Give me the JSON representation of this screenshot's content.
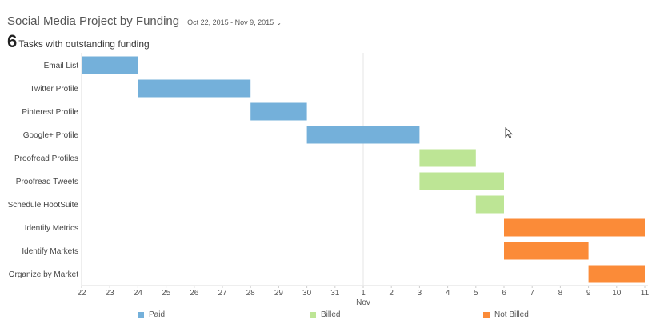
{
  "header": {
    "title": "Social Media Project by Funding",
    "date_range": "Oct 22, 2015 - Nov 9, 2015",
    "date_range_icon": "chevron-down-icon"
  },
  "summary": {
    "count": "6",
    "label": "Tasks with outstanding funding"
  },
  "colors": {
    "Paid": "#74b0da",
    "Billed": "#bde595",
    "Not Billed": "#fb8b38"
  },
  "chart_data": {
    "type": "gantt",
    "title": "",
    "x_ticks": [
      "22",
      "23",
      "24",
      "25",
      "26",
      "27",
      "28",
      "29",
      "30",
      "31",
      "1",
      "2",
      "3",
      "4",
      "5",
      "6",
      "7",
      "8",
      "9",
      "10",
      "11"
    ],
    "x_month_marker": {
      "tick": "1",
      "label": "Nov"
    },
    "xlim": [
      "2015-10-22",
      "2015-11-11"
    ],
    "tasks": [
      {
        "name": "Email List",
        "start": "2015-10-22",
        "end": "2015-10-24",
        "status": "Paid"
      },
      {
        "name": "Twitter Profile",
        "start": "2015-10-24",
        "end": "2015-10-28",
        "status": "Paid"
      },
      {
        "name": "Pinterest Profile",
        "start": "2015-10-28",
        "end": "2015-10-30",
        "status": "Paid"
      },
      {
        "name": "Google+ Profile",
        "start": "2015-10-30",
        "end": "2015-11-03",
        "status": "Paid"
      },
      {
        "name": "Proofread Profiles",
        "start": "2015-11-03",
        "end": "2015-11-05",
        "status": "Billed"
      },
      {
        "name": "Proofread Tweets",
        "start": "2015-11-03",
        "end": "2015-11-06",
        "status": "Billed"
      },
      {
        "name": "Schedule HootSuite",
        "start": "2015-11-05",
        "end": "2015-11-06",
        "status": "Billed"
      },
      {
        "name": "Identify Metrics",
        "start": "2015-11-06",
        "end": "2015-11-11",
        "status": "Not Billed"
      },
      {
        "name": "Identify Markets",
        "start": "2015-11-06",
        "end": "2015-11-09",
        "status": "Not Billed"
      },
      {
        "name": "Organize by Market",
        "start": "2015-11-09",
        "end": "2015-11-11",
        "status": "Not Billed"
      }
    ],
    "legend": [
      "Paid",
      "Billed",
      "Not Billed"
    ],
    "legend_position": "bottom",
    "grid": "vertical line at month boundary"
  }
}
